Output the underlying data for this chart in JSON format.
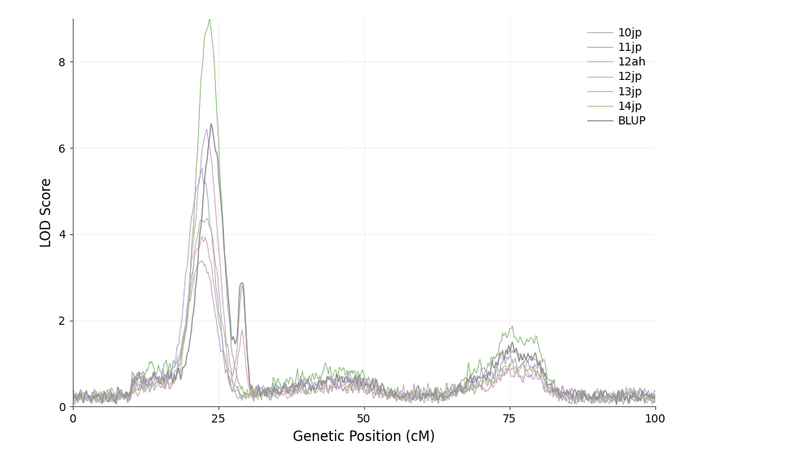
{
  "series_order": [
    "10jp",
    "11jp",
    "12ah",
    "12jp",
    "13jp",
    "14jp",
    "BLUP"
  ],
  "series": {
    "10jp": {
      "color": "#aaaaaa",
      "lw": 0.7
    },
    "11jp": {
      "color": "#88b878",
      "lw": 0.7
    },
    "12ah": {
      "color": "#c0a0c8",
      "lw": 0.7
    },
    "12jp": {
      "color": "#d0a0c0",
      "lw": 0.7
    },
    "13jp": {
      "color": "#a0a8c8",
      "lw": 0.7
    },
    "14jp": {
      "color": "#b0b888",
      "lw": 0.7
    },
    "BLUP": {
      "color": "#909090",
      "lw": 1.0
    }
  },
  "xlim": [
    0,
    100
  ],
  "ylim": [
    0,
    9
  ],
  "xlabel": "Genetic Position (cM)",
  "ylabel": "LOD Score",
  "xticks": [
    0,
    25,
    50,
    75,
    100
  ],
  "yticks": [
    0,
    2,
    4,
    6,
    8
  ],
  "grid_color": "#e8e0f0",
  "bg_color": "#ffffff",
  "fig_bg": "#ffffff",
  "peak_heights": {
    "11jp": 8.5,
    "BLUP": 6.0,
    "12ah": 5.9,
    "13jp": 4.8,
    "14jp": 4.0,
    "12jp": 3.5,
    "10jp": 3.0
  },
  "peak_positions": {
    "11jp": 23.2,
    "BLUP": 23.8,
    "12ah": 22.8,
    "13jp": 22.3,
    "14jp": 23.0,
    "12jp": 22.6,
    "10jp": 22.5
  }
}
